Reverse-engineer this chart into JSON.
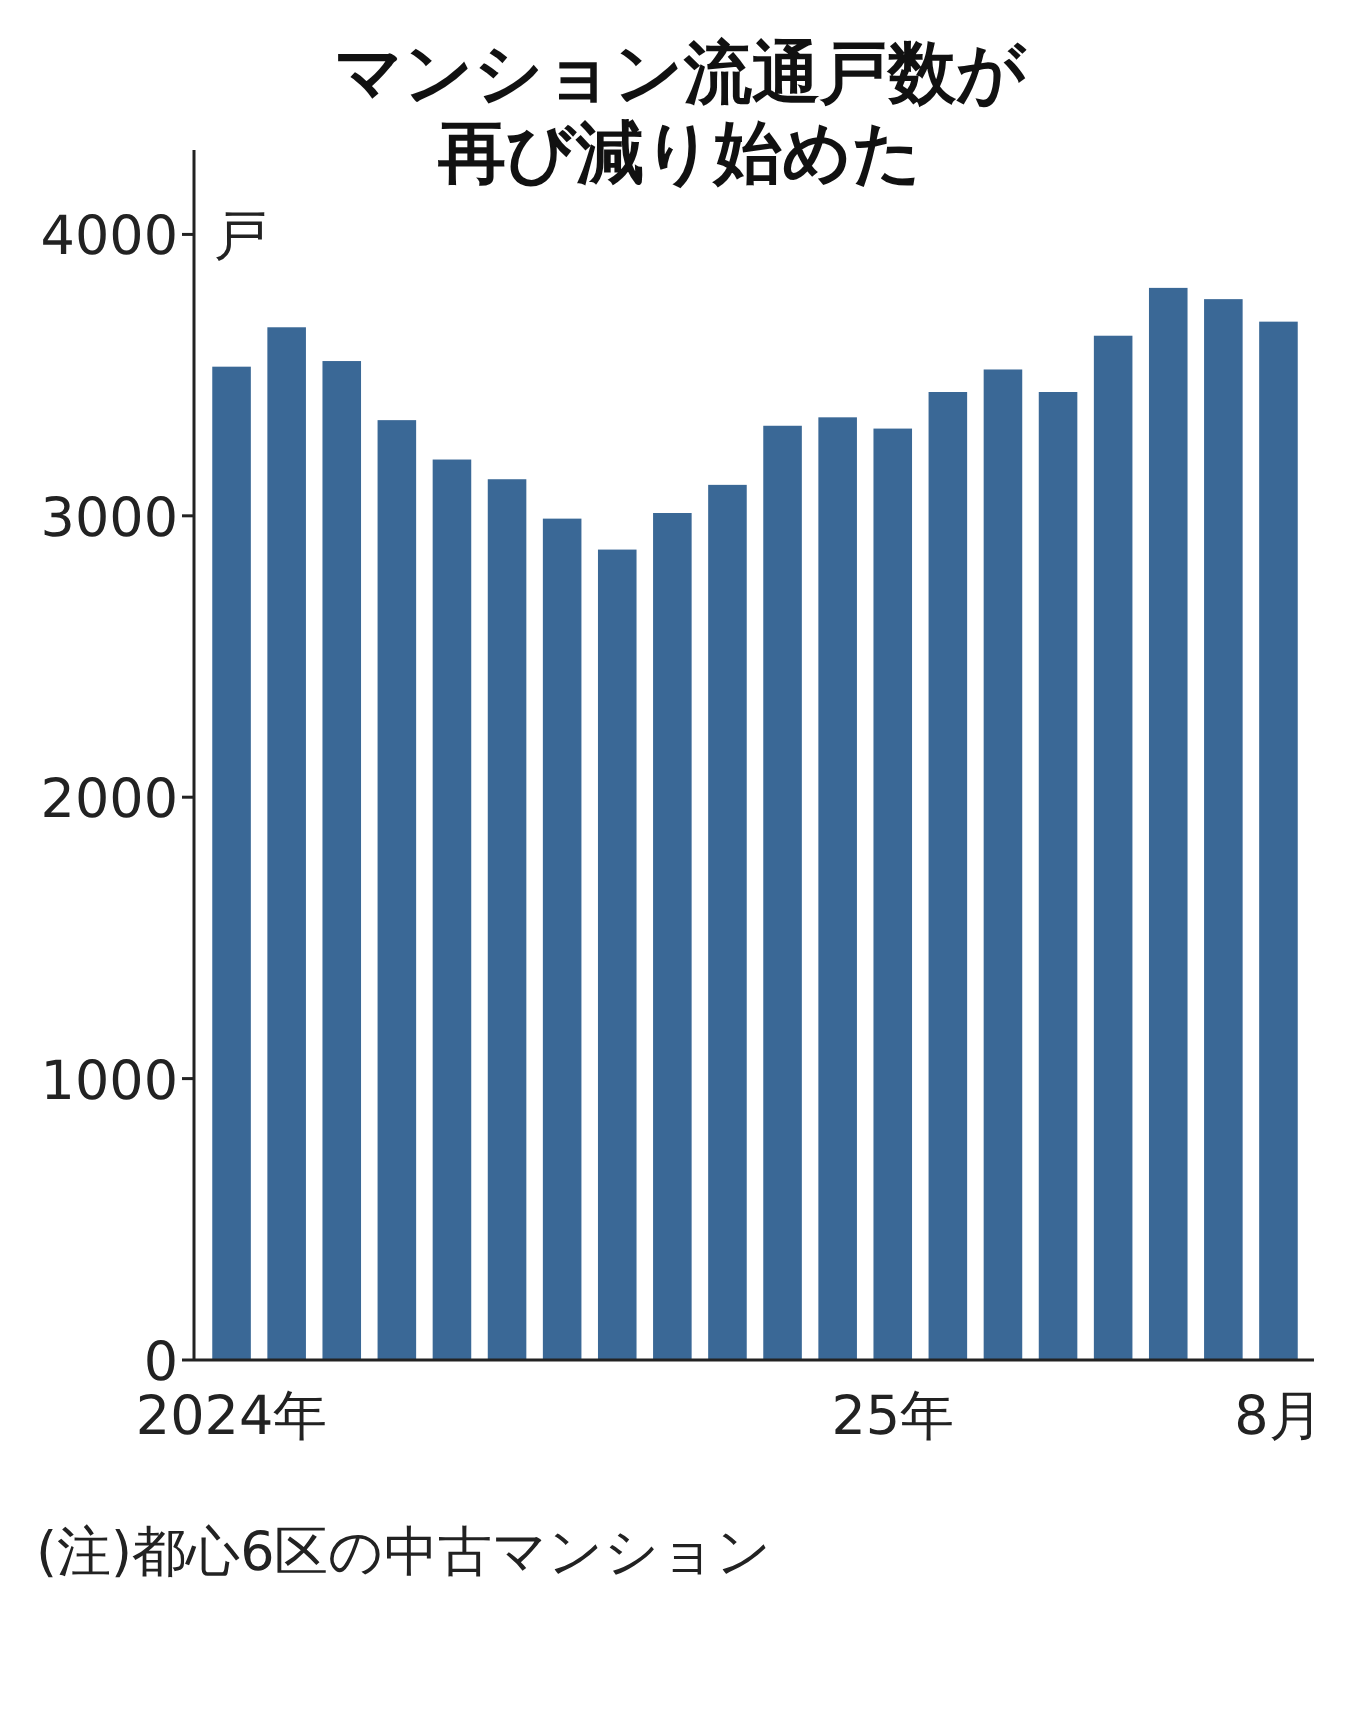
{
  "chart_data": {
    "type": "bar",
    "title": "マンション流通戸数が再び減り始めた",
    "ylabel": "戸",
    "categories": [
      "2024年",
      null,
      null,
      null,
      null,
      null,
      null,
      null,
      null,
      null,
      null,
      null,
      "25年",
      null,
      null,
      null,
      null,
      null,
      null,
      "8月"
    ],
    "values": [
      3530,
      3670,
      3550,
      3340,
      3200,
      3130,
      2990,
      2880,
      3010,
      3110,
      3320,
      3350,
      3310,
      3440,
      3520,
      3440,
      3640,
      3810,
      3770,
      3690
    ],
    "color": "#3a6896",
    "ylim": [
      0,
      4300
    ],
    "yticks": [
      0,
      1000,
      2000,
      3000,
      4000
    ],
    "grid": false,
    "annotations": [
      "(注)都心6区の中古マンション"
    ]
  }
}
